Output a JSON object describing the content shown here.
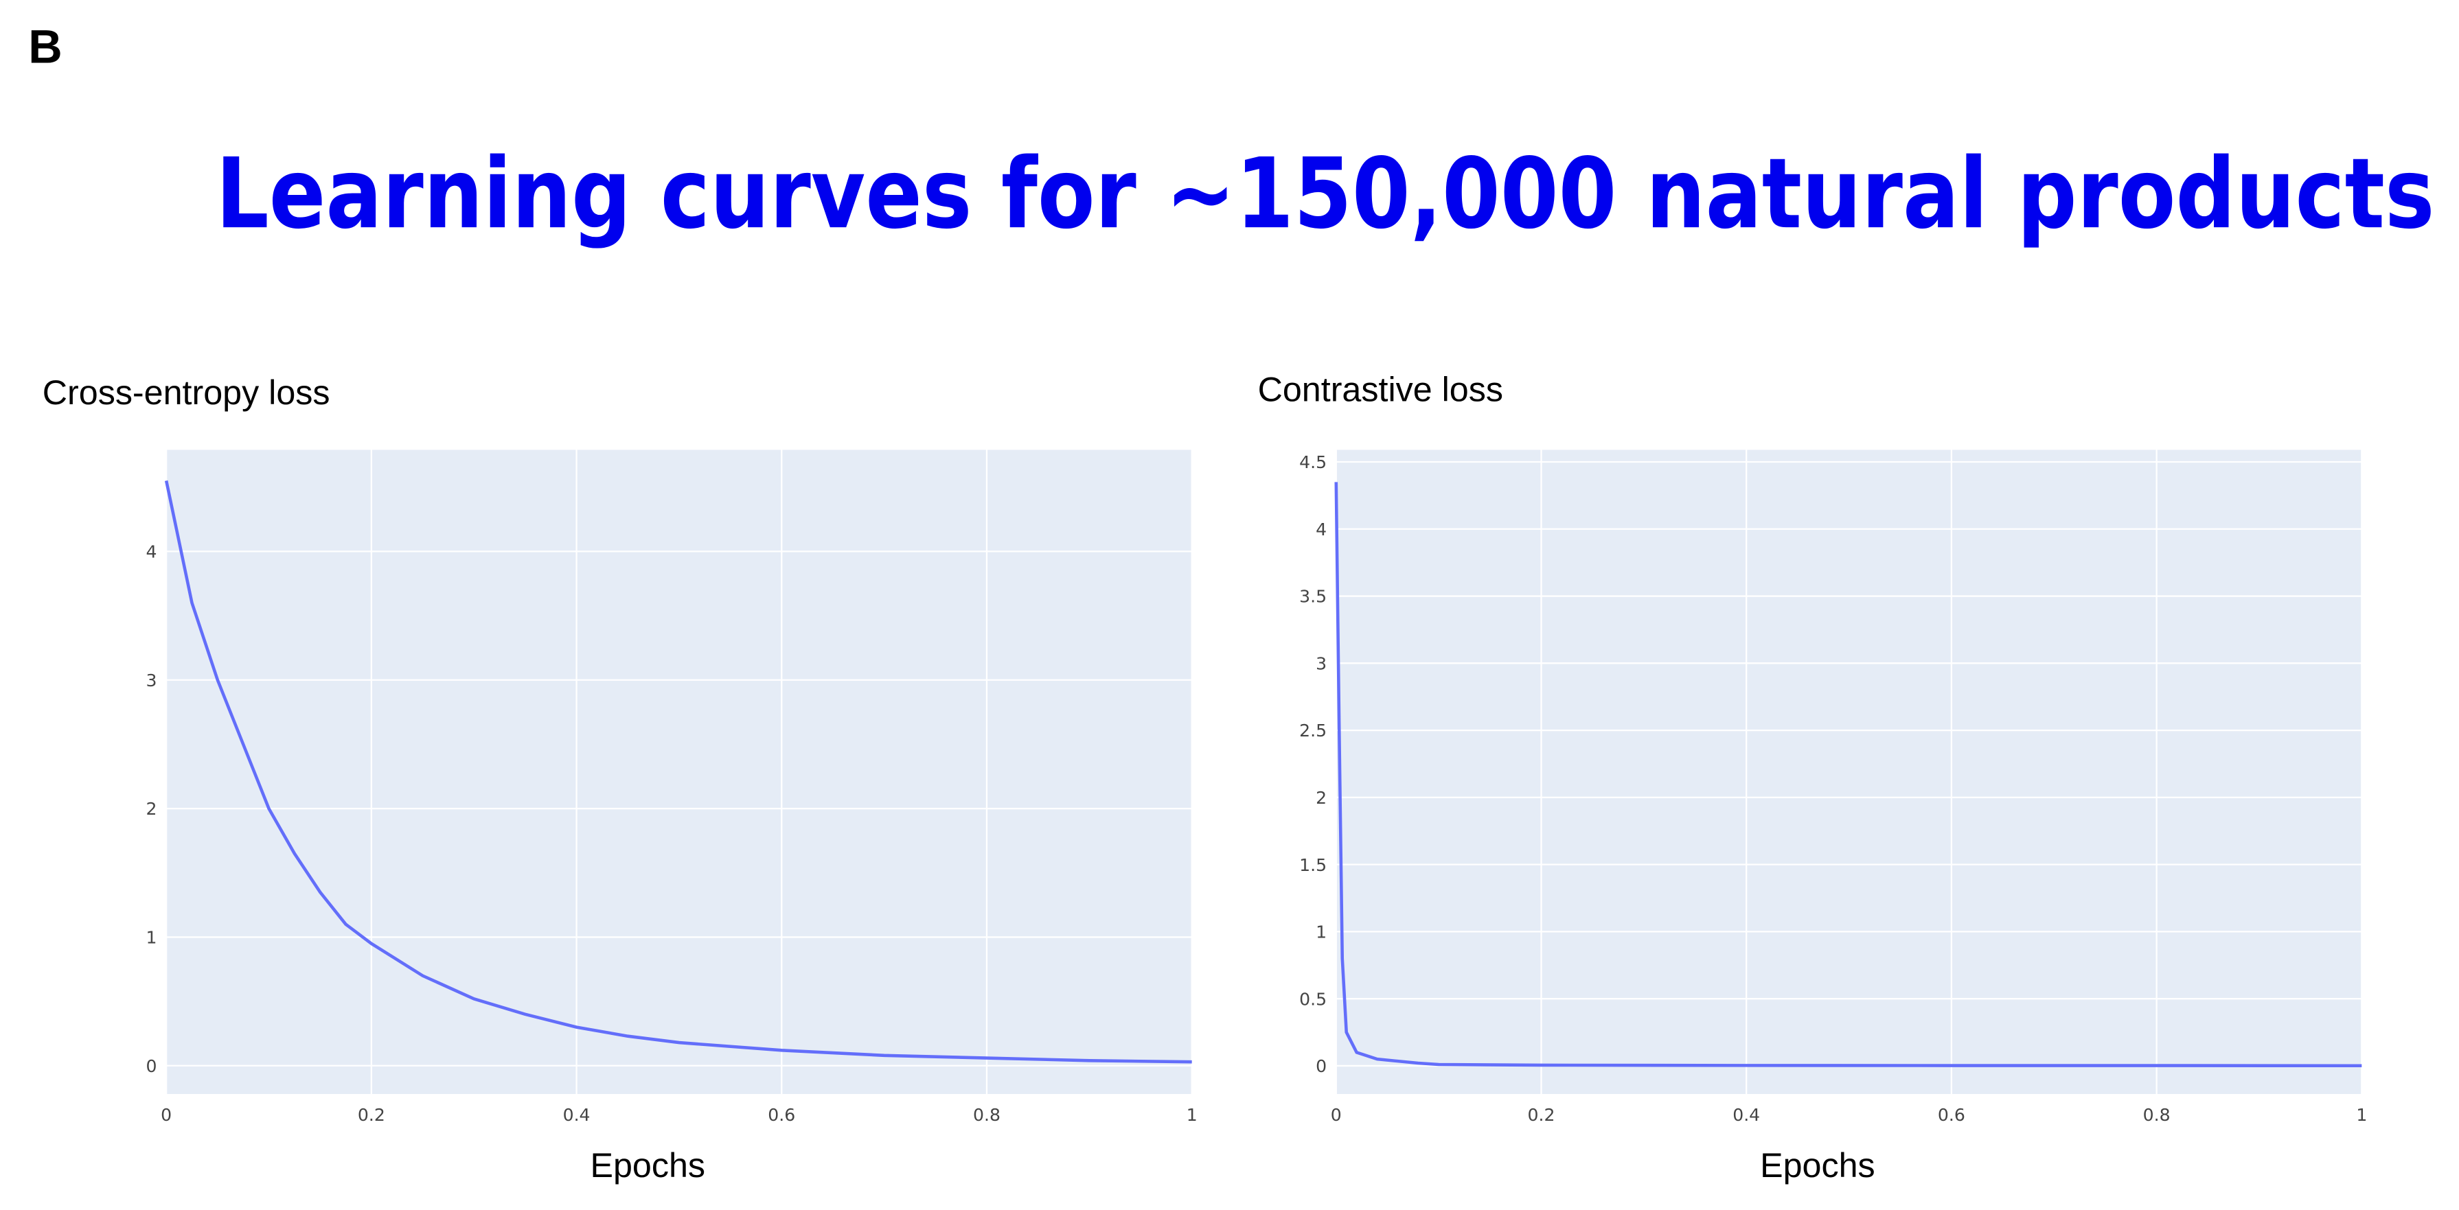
{
  "panel_label": "B",
  "title": "Learning curves for ~150,000 natural products",
  "chart_data": [
    {
      "type": "line",
      "title": "Cross-entropy loss",
      "x_label": "Epochs",
      "x": [
        0,
        0.025,
        0.05,
        0.075,
        0.1,
        0.125,
        0.15,
        0.175,
        0.2,
        0.25,
        0.3,
        0.35,
        0.4,
        0.45,
        0.5,
        0.6,
        0.7,
        0.8,
        0.9,
        1
      ],
      "series": [
        {
          "color": "#636efa",
          "values": [
            4.55,
            3.6,
            3.0,
            2.5,
            2.0,
            1.65,
            1.35,
            1.1,
            0.95,
            0.7,
            0.52,
            0.4,
            0.3,
            0.23,
            0.18,
            0.12,
            0.08,
            0.06,
            0.04,
            0.03
          ]
        }
      ],
      "xlim": [
        0,
        1
      ],
      "xticks": [
        0,
        0.2,
        0.4,
        0.6,
        0.8,
        1
      ],
      "ylim": [
        -0.22,
        4.79
      ],
      "yticks": [
        0,
        1,
        2,
        3,
        4
      ],
      "grid": true
    },
    {
      "type": "line",
      "title": "Contrastive loss",
      "x_label": "Epochs",
      "x": [
        0,
        0.003,
        0.006,
        0.01,
        0.02,
        0.04,
        0.08,
        0.1,
        0.2,
        0.4,
        0.6,
        0.8,
        1
      ],
      "series": [
        {
          "color": "#636efa",
          "values": [
            4.35,
            2.5,
            0.8,
            0.25,
            0.1,
            0.05,
            0.02,
            0.01,
            0.005,
            0.003,
            0.002,
            0.002,
            0.001
          ]
        }
      ],
      "xlim": [
        0,
        1
      ],
      "xticks": [
        0,
        0.2,
        0.4,
        0.6,
        0.8,
        1
      ],
      "ylim": [
        -0.21,
        4.59
      ],
      "yticks": [
        0,
        0.5,
        1,
        1.5,
        2,
        2.5,
        3,
        3.5,
        4,
        4.5
      ],
      "grid": true
    }
  ]
}
